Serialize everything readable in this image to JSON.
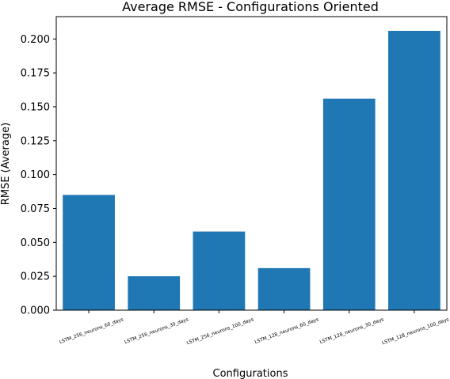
{
  "chart_data": {
    "type": "bar",
    "title": "Average RMSE - Configurations Oriented",
    "xlabel": "Configurations",
    "ylabel": "RMSE (Average)",
    "categories": [
      "LSTM_256_neurons_60_days",
      "LSTM_256_neurons_30_days",
      "LSTM_256_neurons_100_days",
      "LSTM_128_neurons_60_days",
      "LSTM_128_neurons_30_days",
      "LSTM_128_neurons_100_days"
    ],
    "values": [
      0.085,
      0.025,
      0.058,
      0.031,
      0.156,
      0.206
    ],
    "ylim": [
      0,
      0.2165
    ],
    "yticks": [
      "0.000",
      "0.025",
      "0.050",
      "0.075",
      "0.100",
      "0.125",
      "0.150",
      "0.175",
      "0.200"
    ],
    "ytick_values": [
      0,
      0.025,
      0.05,
      0.075,
      0.1,
      0.125,
      0.15,
      0.175,
      0.2
    ],
    "bar_color": "#1f77b4",
    "grid": false,
    "legend": "none"
  }
}
